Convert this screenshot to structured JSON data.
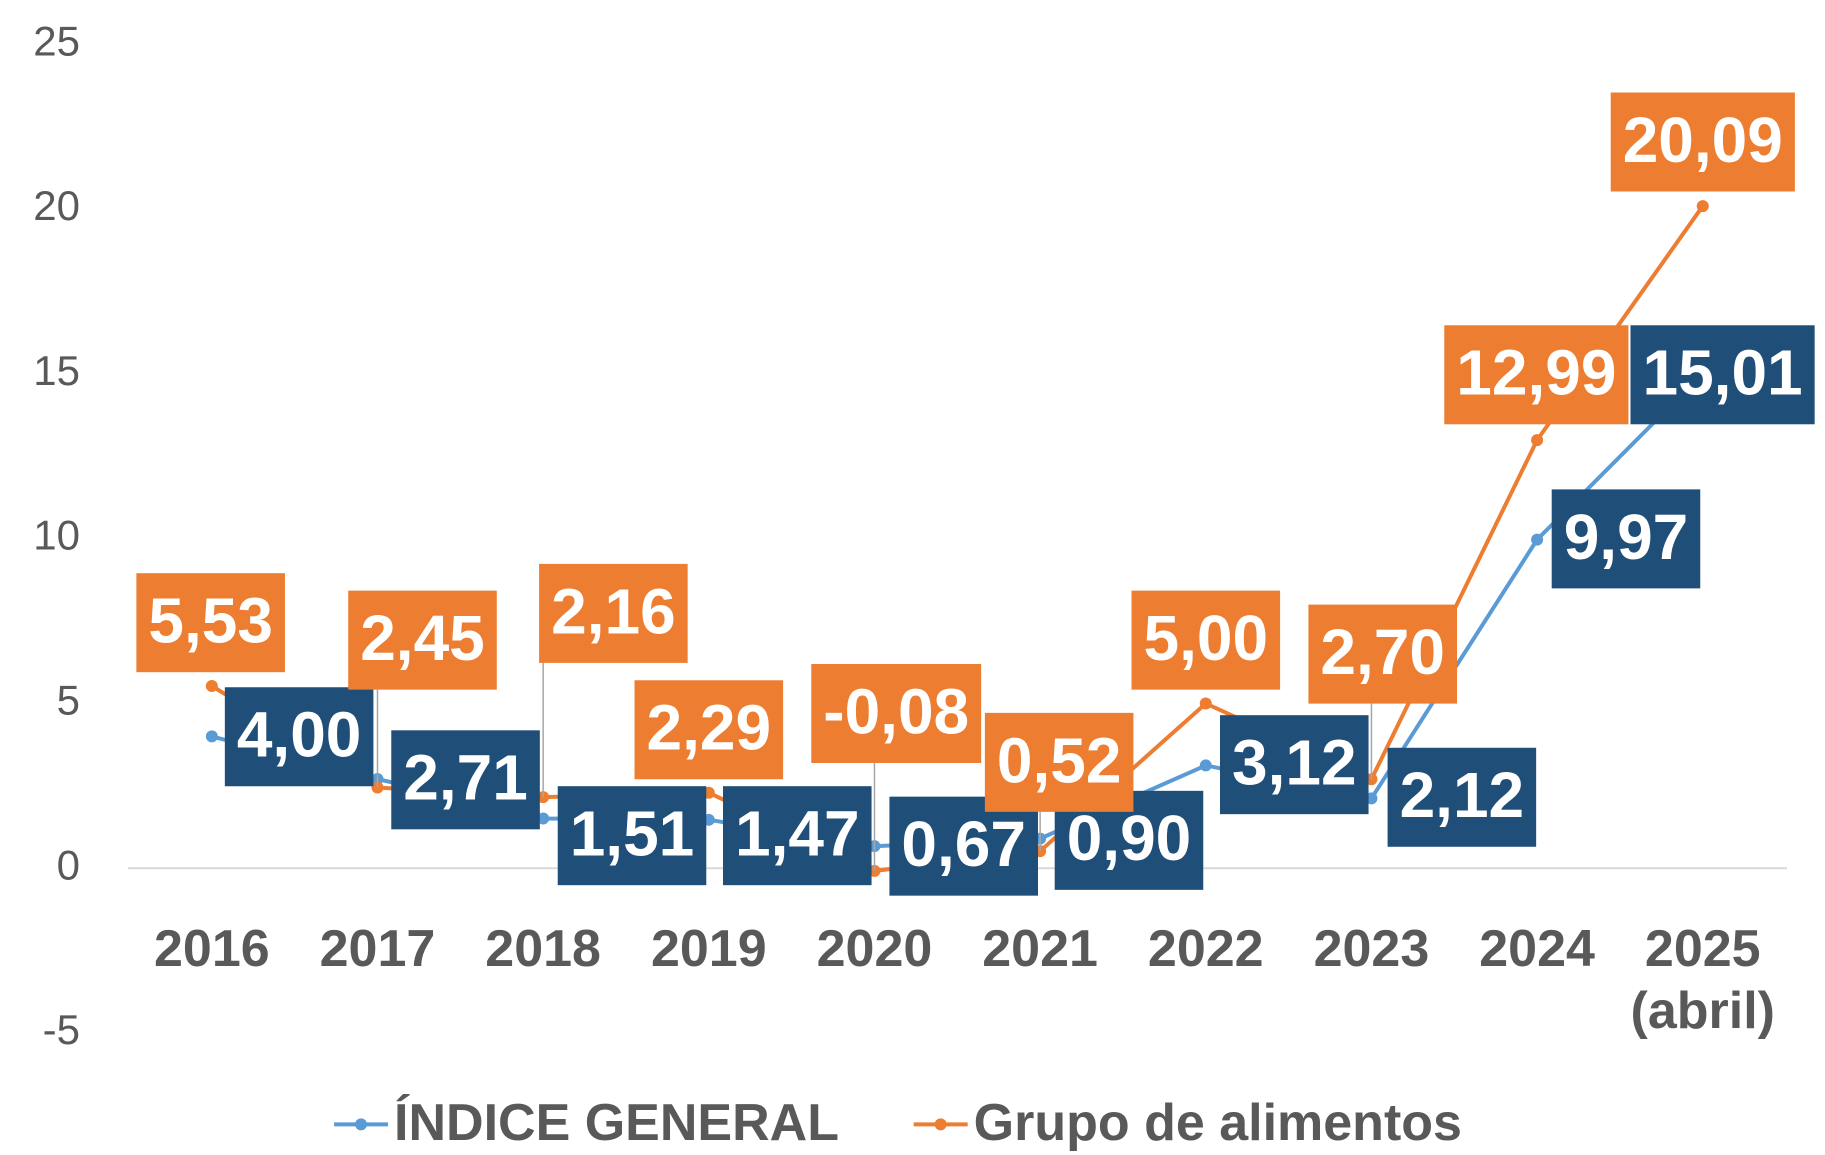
{
  "chart_data": {
    "type": "line",
    "categories": [
      "2016",
      "2017",
      "2018",
      "2019",
      "2020",
      "2021",
      "2022",
      "2023",
      "2024",
      "2025 (abril)"
    ],
    "series": [
      {
        "name": "ÍNDICE GENERAL",
        "color": "#5b9bd5",
        "label_color": "#1f4e79",
        "values": [
          4.0,
          2.71,
          1.51,
          1.47,
          0.67,
          0.9,
          3.12,
          2.12,
          9.97,
          15.01
        ],
        "value_labels": [
          "4,00",
          "2,71",
          "1,51",
          "1,47",
          "0,67",
          "0,90",
          "3,12",
          "2,12",
          "9,97",
          "15,01"
        ]
      },
      {
        "name": "Grupo de alimentos",
        "color": "#ed7d31",
        "label_color": "#ed7d31",
        "values": [
          5.53,
          2.45,
          2.16,
          2.29,
          -0.08,
          0.52,
          5.0,
          2.7,
          12.99,
          20.09
        ],
        "value_labels": [
          "5,53",
          "2,45",
          "2,16",
          "2,29",
          "-0,08",
          "0,52",
          "5,00",
          "2,70",
          "12,99",
          "20,09"
        ]
      }
    ],
    "ylim": [
      -5,
      25
    ],
    "yticks": [
      -5,
      0,
      5,
      10,
      15,
      20,
      25
    ],
    "legend": "bottom"
  }
}
